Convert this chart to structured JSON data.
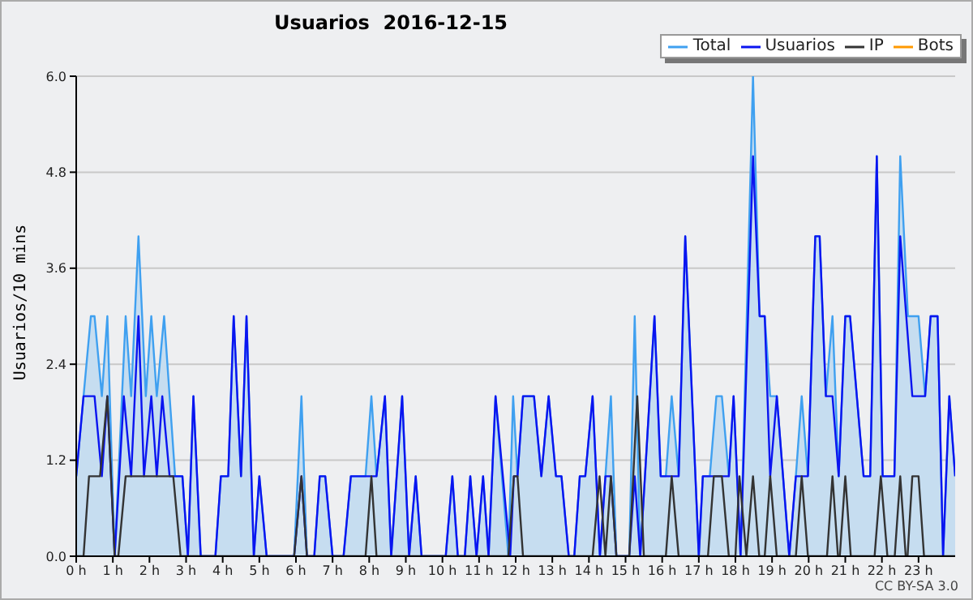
{
  "chart_data": {
    "type": "line",
    "title": "Usuarios  2016-12-15",
    "ylabel": "Usuarios/10 mins",
    "annotations": [
      "CC BY-SA 3.0"
    ],
    "xlim": [
      0,
      24
    ],
    "xticks": [
      {
        "value": 0,
        "label": "0 h"
      },
      {
        "value": 1,
        "label": "1 h"
      },
      {
        "value": 2,
        "label": "2 h"
      },
      {
        "value": 3,
        "label": "3 h"
      },
      {
        "value": 4,
        "label": "4 h"
      },
      {
        "value": 5,
        "label": "5 h"
      },
      {
        "value": 6,
        "label": "6 h"
      },
      {
        "value": 7,
        "label": "7 h"
      },
      {
        "value": 8,
        "label": "8 h"
      },
      {
        "value": 9,
        "label": "9 h"
      },
      {
        "value": 10,
        "label": "10 h"
      },
      {
        "value": 11,
        "label": "11 h"
      },
      {
        "value": 12,
        "label": "12 h"
      },
      {
        "value": 13,
        "label": "13 h"
      },
      {
        "value": 14,
        "label": "14 h"
      },
      {
        "value": 15,
        "label": "15 h"
      },
      {
        "value": 16,
        "label": "16 h"
      },
      {
        "value": 17,
        "label": "17 h"
      },
      {
        "value": 18,
        "label": "18 h"
      },
      {
        "value": 19,
        "label": "19 h"
      },
      {
        "value": 20,
        "label": "20 h"
      },
      {
        "value": 21,
        "label": "21 h"
      },
      {
        "value": 22,
        "label": "22 h"
      },
      {
        "value": 23,
        "label": "23 h"
      }
    ],
    "ylim": [
      0,
      6
    ],
    "yticks": [
      {
        "value": 0,
        "label": "0.0"
      },
      {
        "value": 1.2,
        "label": "1.2"
      },
      {
        "value": 2.4,
        "label": "2.4"
      },
      {
        "value": 3.6,
        "label": "3.6"
      },
      {
        "value": 4.8,
        "label": "4.8"
      },
      {
        "value": 6,
        "label": "6.0"
      }
    ],
    "grid": "y",
    "legend": "top right",
    "line_style": "solid",
    "series": [
      {
        "name": "Total",
        "type": "area",
        "color": "#3fa0f0",
        "x": [
          0,
          0.2,
          0.4,
          0.5,
          0.7,
          0.85,
          1.05,
          1.35,
          1.5,
          1.7,
          1.9,
          2.05,
          2.2,
          2.4,
          2.7,
          2.9,
          3.05,
          3.2,
          3.4,
          3.8,
          3.95,
          4.15,
          4.3,
          4.5,
          4.65,
          4.85,
          5.0,
          5.2,
          5.95,
          6.15,
          6.3,
          6.5,
          6.65,
          6.8,
          7.0,
          7.3,
          7.5,
          7.9,
          8.06,
          8.2,
          8.43,
          8.6,
          8.9,
          9.09,
          9.27,
          9.43,
          10.09,
          10.27,
          10.42,
          10.61,
          10.76,
          10.93,
          11.11,
          11.26,
          11.45,
          11.8,
          11.93,
          12.05,
          12.2,
          12.5,
          12.7,
          12.9,
          13.1,
          13.25,
          13.45,
          13.6,
          13.75,
          13.9,
          14.1,
          14.3,
          14.45,
          14.6,
          14.75,
          15.1,
          15.25,
          15.4,
          15.79,
          15.96,
          16.1,
          16.26,
          16.45,
          16.63,
          17.0,
          17.11,
          17.3,
          17.48,
          17.63,
          17.82,
          17.95,
          18.14,
          18.48,
          18.66,
          18.8,
          18.95,
          19.13,
          19.47,
          19.65,
          19.81,
          19.98,
          20.18,
          20.3,
          20.47,
          20.65,
          20.82,
          21.0,
          21.13,
          21.5,
          21.68,
          21.86,
          22.02,
          22.34,
          22.5,
          22.71,
          23.0,
          23.18,
          23.33,
          23.52,
          23.67,
          23.84,
          24.0
        ],
        "values": [
          1,
          2,
          3,
          3,
          2,
          3,
          0,
          3,
          2,
          4,
          2,
          3,
          2,
          3,
          1,
          1,
          0,
          2,
          0,
          0,
          1,
          1,
          3,
          1,
          3,
          0,
          1,
          0,
          0,
          2,
          0,
          0,
          1,
          1,
          0,
          0,
          1,
          1,
          2,
          1,
          2,
          0,
          2,
          0,
          1,
          0,
          0,
          1,
          0,
          0,
          1,
          0,
          1,
          0,
          2,
          0,
          2,
          1,
          2,
          2,
          1,
          2,
          1,
          1,
          0,
          0,
          1,
          1,
          2,
          0,
          1,
          2,
          0,
          0,
          3,
          0,
          3,
          1,
          1,
          2,
          1,
          4,
          0,
          1,
          1,
          2,
          2,
          1,
          2,
          0,
          6,
          3,
          3,
          2,
          2,
          0,
          1,
          2,
          1,
          4,
          4,
          2,
          3,
          1,
          3,
          3,
          1,
          1,
          5,
          1,
          1,
          5,
          3,
          3,
          2,
          3,
          3,
          0,
          2,
          1
        ]
      },
      {
        "name": "Usuarios",
        "color": "#0a14f0",
        "x": [
          0,
          0.2,
          0.5,
          0.7,
          0.85,
          1.05,
          1.3,
          1.5,
          1.7,
          1.85,
          2.05,
          2.2,
          2.35,
          2.55,
          2.9,
          3.05,
          3.2,
          3.4,
          3.8,
          3.95,
          4.15,
          4.3,
          4.5,
          4.65,
          4.85,
          5.0,
          5.2,
          5.95,
          6.15,
          6.3,
          6.5,
          6.65,
          6.8,
          7.0,
          7.3,
          7.5,
          8.2,
          8.43,
          8.6,
          8.9,
          9.09,
          9.27,
          9.43,
          10.09,
          10.27,
          10.42,
          10.61,
          10.76,
          10.93,
          11.11,
          11.26,
          11.45,
          11.85,
          11.95,
          12.05,
          12.2,
          12.5,
          12.7,
          12.9,
          13.1,
          13.25,
          13.45,
          13.6,
          13.75,
          13.9,
          14.1,
          14.3,
          14.45,
          14.6,
          14.75,
          15.1,
          15.25,
          15.4,
          15.79,
          15.96,
          16.45,
          16.63,
          17.0,
          17.11,
          17.82,
          17.95,
          18.14,
          18.48,
          18.66,
          18.8,
          18.95,
          19.13,
          19.47,
          19.65,
          19.98,
          20.18,
          20.3,
          20.47,
          20.65,
          20.82,
          21.0,
          21.13,
          21.5,
          21.68,
          21.86,
          22.02,
          22.34,
          22.5,
          22.83,
          23.18,
          23.33,
          23.52,
          23.67,
          23.84,
          24.0
        ],
        "values": [
          1,
          2,
          2,
          1,
          2,
          0,
          2,
          1,
          3,
          1,
          2,
          1,
          2,
          1,
          1,
          0,
          2,
          0,
          0,
          1,
          1,
          3,
          1,
          3,
          0,
          1,
          0,
          0,
          1,
          0,
          0,
          1,
          1,
          0,
          0,
          1,
          1,
          2,
          0,
          2,
          0,
          1,
          0,
          0,
          1,
          0,
          0,
          1,
          0,
          1,
          0,
          2,
          0,
          1,
          1,
          2,
          2,
          1,
          2,
          1,
          1,
          0,
          0,
          1,
          1,
          2,
          0,
          1,
          1,
          0,
          0,
          1,
          0,
          3,
          1,
          1,
          4,
          0,
          1,
          1,
          2,
          0,
          5,
          3,
          3,
          1,
          2,
          0,
          1,
          1,
          4,
          4,
          2,
          2,
          1,
          3,
          3,
          1,
          1,
          5,
          1,
          1,
          4,
          2,
          2,
          3,
          3,
          0,
          2,
          1
        ]
      },
      {
        "name": "IP",
        "color": "#333333",
        "x": [
          0,
          0.2,
          0.35,
          0.65,
          0.85,
          1.05,
          1.15,
          1.35,
          2.65,
          2.85,
          5.95,
          6.15,
          6.3,
          7.9,
          8.06,
          8.2,
          11.8,
          11.95,
          12.05,
          12.2,
          14.1,
          14.29,
          14.45,
          14.6,
          14.75,
          15.1,
          15.32,
          15.5,
          16.1,
          16.26,
          16.45,
          17.25,
          17.41,
          17.63,
          17.82,
          18.0,
          18.11,
          18.3,
          18.48,
          18.65,
          18.8,
          18.95,
          19.13,
          19.65,
          19.81,
          19.98,
          20.5,
          20.65,
          20.8,
          20.85,
          21.0,
          21.15,
          21.8,
          21.97,
          22.15,
          22.35,
          22.5,
          22.65,
          22.7,
          22.83,
          23.0,
          23.15,
          24.0
        ],
        "values": [
          0,
          0,
          1,
          1,
          2,
          0,
          0,
          1,
          1,
          0,
          0,
          1,
          0,
          0,
          1,
          0,
          0,
          1,
          1,
          0,
          0,
          1,
          0,
          1,
          0,
          0,
          2,
          0,
          0,
          1,
          0,
          0,
          1,
          1,
          0,
          0,
          1,
          0,
          1,
          0,
          0,
          1,
          0,
          0,
          1,
          0,
          0,
          1,
          0,
          0,
          1,
          0,
          0,
          1,
          0,
          0,
          1,
          0,
          0,
          1,
          1,
          0,
          0
        ]
      },
      {
        "name": "Bots",
        "color": "#ff9900"
      }
    ]
  }
}
